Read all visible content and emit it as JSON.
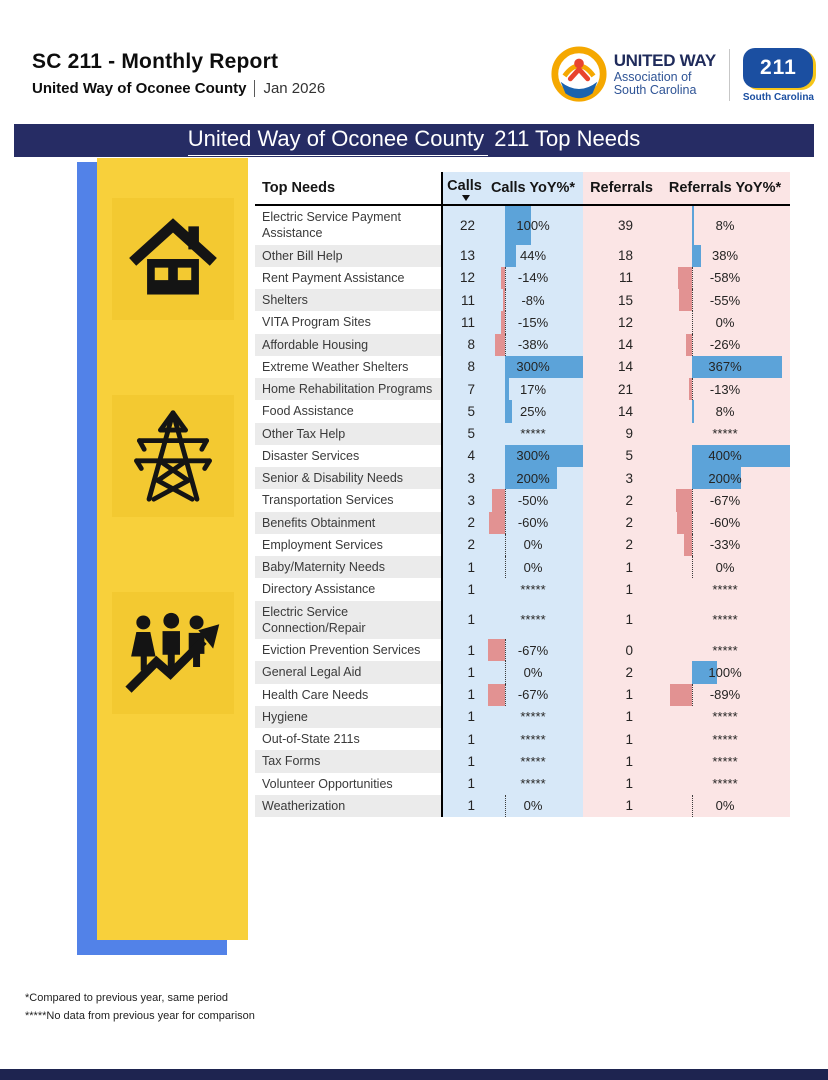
{
  "report": {
    "title": "SC 211 - Monthly Report",
    "org": "United Way of Oconee County",
    "period": "Jan 2026"
  },
  "logo": {
    "united_way_name": "UNITED WAY",
    "united_way_sub1": "Association of",
    "united_way_sub2": "South Carolina",
    "badge_number": "211",
    "badge_label": "South Carolina"
  },
  "banner": {
    "title_underlined": "United Way of Oconee County",
    "title_rest": " 211 Top Needs"
  },
  "icons": [
    "house-icon",
    "transmission-tower-icon",
    "people-growth-icon"
  ],
  "chart_data": {
    "type": "table",
    "title": "United Way of Oconee County 211 Top Needs",
    "columns": [
      "Top Needs",
      "Calls",
      "Calls YoY%*",
      "Referrals",
      "Referrals YoY%*"
    ],
    "sort": {
      "column": "Calls",
      "direction": "desc"
    },
    "no_data_marker": "*****",
    "rows": [
      {
        "need": "Electric Service Payment Assistance",
        "calls": 22,
        "calls_yoy": "100%",
        "calls_yoy_pct": 100,
        "referrals": 39,
        "referrals_yoy": "8%",
        "referrals_yoy_pct": 8
      },
      {
        "need": "Other Bill Help",
        "calls": 13,
        "calls_yoy": "44%",
        "calls_yoy_pct": 44,
        "referrals": 18,
        "referrals_yoy": "38%",
        "referrals_yoy_pct": 38
      },
      {
        "need": "Rent Payment Assistance",
        "calls": 12,
        "calls_yoy": "-14%",
        "calls_yoy_pct": -14,
        "referrals": 11,
        "referrals_yoy": "-58%",
        "referrals_yoy_pct": -58
      },
      {
        "need": "Shelters",
        "calls": 11,
        "calls_yoy": "-8%",
        "calls_yoy_pct": -8,
        "referrals": 15,
        "referrals_yoy": "-55%",
        "referrals_yoy_pct": -55
      },
      {
        "need": "VITA Program Sites",
        "calls": 11,
        "calls_yoy": "-15%",
        "calls_yoy_pct": -15,
        "referrals": 12,
        "referrals_yoy": "0%",
        "referrals_yoy_pct": 0
      },
      {
        "need": "Affordable Housing",
        "calls": 8,
        "calls_yoy": "-38%",
        "calls_yoy_pct": -38,
        "referrals": 14,
        "referrals_yoy": "-26%",
        "referrals_yoy_pct": -26
      },
      {
        "need": "Extreme Weather Shelters",
        "calls": 8,
        "calls_yoy": "300%",
        "calls_yoy_pct": 300,
        "referrals": 14,
        "referrals_yoy": "367%",
        "referrals_yoy_pct": 367
      },
      {
        "need": "Home Rehabilitation Programs",
        "calls": 7,
        "calls_yoy": "17%",
        "calls_yoy_pct": 17,
        "referrals": 21,
        "referrals_yoy": "-13%",
        "referrals_yoy_pct": -13
      },
      {
        "need": "Food Assistance",
        "calls": 5,
        "calls_yoy": "25%",
        "calls_yoy_pct": 25,
        "referrals": 14,
        "referrals_yoy": "8%",
        "referrals_yoy_pct": 8
      },
      {
        "need": "Other Tax Help",
        "calls": 5,
        "calls_yoy": "*****",
        "calls_yoy_pct": null,
        "referrals": 9,
        "referrals_yoy": "*****",
        "referrals_yoy_pct": null
      },
      {
        "need": "Disaster Services",
        "calls": 4,
        "calls_yoy": "300%",
        "calls_yoy_pct": 300,
        "referrals": 5,
        "referrals_yoy": "400%",
        "referrals_yoy_pct": 400
      },
      {
        "need": "Senior & Disability Needs",
        "calls": 3,
        "calls_yoy": "200%",
        "calls_yoy_pct": 200,
        "referrals": 3,
        "referrals_yoy": "200%",
        "referrals_yoy_pct": 200
      },
      {
        "need": "Transportation Services",
        "calls": 3,
        "calls_yoy": "-50%",
        "calls_yoy_pct": -50,
        "referrals": 2,
        "referrals_yoy": "-67%",
        "referrals_yoy_pct": -67
      },
      {
        "need": "Benefits Obtainment",
        "calls": 2,
        "calls_yoy": "-60%",
        "calls_yoy_pct": -60,
        "referrals": 2,
        "referrals_yoy": "-60%",
        "referrals_yoy_pct": -60
      },
      {
        "need": "Employment Services",
        "calls": 2,
        "calls_yoy": "0%",
        "calls_yoy_pct": 0,
        "referrals": 2,
        "referrals_yoy": "-33%",
        "referrals_yoy_pct": -33
      },
      {
        "need": "Baby/Maternity Needs",
        "calls": 1,
        "calls_yoy": "0%",
        "calls_yoy_pct": 0,
        "referrals": 1,
        "referrals_yoy": "0%",
        "referrals_yoy_pct": 0
      },
      {
        "need": "Directory Assistance",
        "calls": 1,
        "calls_yoy": "*****",
        "calls_yoy_pct": null,
        "referrals": 1,
        "referrals_yoy": "*****",
        "referrals_yoy_pct": null
      },
      {
        "need": "Electric Service Connection/Repair",
        "calls": 1,
        "calls_yoy": "*****",
        "calls_yoy_pct": null,
        "referrals": 1,
        "referrals_yoy": "*****",
        "referrals_yoy_pct": null
      },
      {
        "need": "Eviction Prevention Services",
        "calls": 1,
        "calls_yoy": "-67%",
        "calls_yoy_pct": -67,
        "referrals": 0,
        "referrals_yoy": "*****",
        "referrals_yoy_pct": null
      },
      {
        "need": "General Legal Aid",
        "calls": 1,
        "calls_yoy": "0%",
        "calls_yoy_pct": 0,
        "referrals": 2,
        "referrals_yoy": "100%",
        "referrals_yoy_pct": 100
      },
      {
        "need": "Health Care Needs",
        "calls": 1,
        "calls_yoy": "-67%",
        "calls_yoy_pct": -67,
        "referrals": 1,
        "referrals_yoy": "-89%",
        "referrals_yoy_pct": -89
      },
      {
        "need": "Hygiene",
        "calls": 1,
        "calls_yoy": "*****",
        "calls_yoy_pct": null,
        "referrals": 1,
        "referrals_yoy": "*****",
        "referrals_yoy_pct": null
      },
      {
        "need": "Out-of-State 211s",
        "calls": 1,
        "calls_yoy": "*****",
        "calls_yoy_pct": null,
        "referrals": 1,
        "referrals_yoy": "*****",
        "referrals_yoy_pct": null
      },
      {
        "need": "Tax Forms",
        "calls": 1,
        "calls_yoy": "*****",
        "calls_yoy_pct": null,
        "referrals": 1,
        "referrals_yoy": "*****",
        "referrals_yoy_pct": null
      },
      {
        "need": "Volunteer Opportunities",
        "calls": 1,
        "calls_yoy": "*****",
        "calls_yoy_pct": null,
        "referrals": 1,
        "referrals_yoy": "*****",
        "referrals_yoy_pct": null
      },
      {
        "need": "Weatherization",
        "calls": 1,
        "calls_yoy": "0%",
        "calls_yoy_pct": 0,
        "referrals": 1,
        "referrals_yoy": "0%",
        "referrals_yoy_pct": 0
      }
    ]
  },
  "footnotes": [
    "*Compared to previous year, same period",
    "*****No data from previous year for comparison"
  ],
  "colors": {
    "navy": "#262C64",
    "bottom_navy": "#1E2450",
    "stripe_blue": "#5282E8",
    "panel_yellow": "#F8D03B",
    "tile_yellow": "#F3C931",
    "col_blue": "#D7E8F8",
    "col_pink": "#FBE5E5",
    "bar_blue": "#5CA3D9",
    "bar_red": "#E29292",
    "row_stripe": "#EBEBEB",
    "uw_navy": "#1F2B5B",
    "uw_blue_text": "#2F5496",
    "badge_blue": "#1B4FA1",
    "badge_yellow": "#F5C518",
    "badge_red": "#D93025",
    "ring_yellow": "#F5A800",
    "person_red": "#E8442E",
    "hand_blue": "#1B63AE"
  }
}
